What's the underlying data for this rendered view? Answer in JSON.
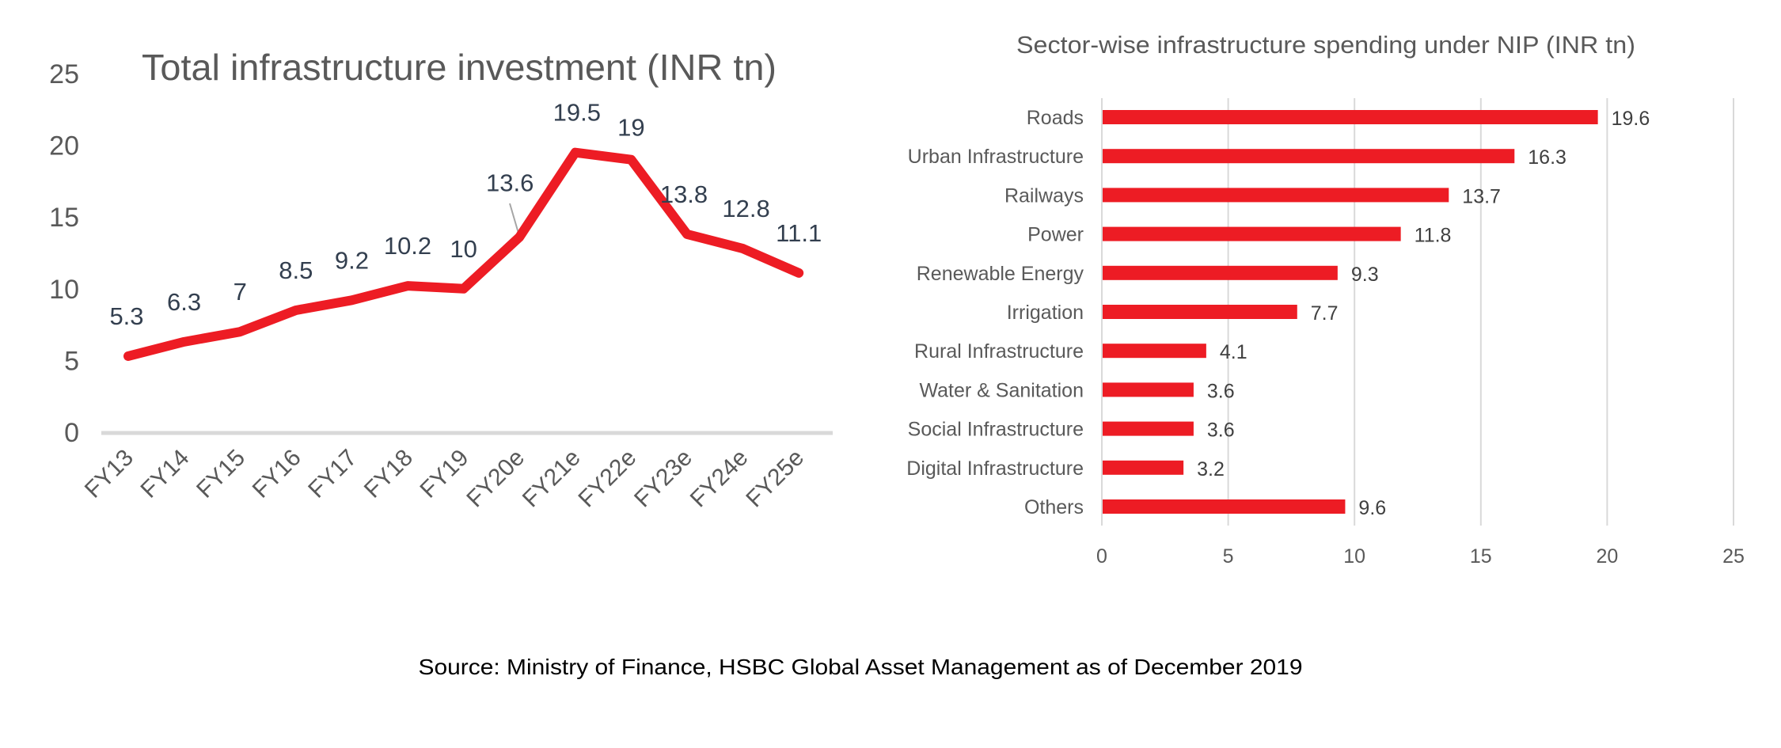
{
  "chart_data": [
    {
      "type": "line",
      "title": "Total infrastructure investment (INR tn)",
      "xlabel": "",
      "ylabel": "",
      "categories": [
        "FY13",
        "FY14",
        "FY15",
        "FY16",
        "FY17",
        "FY18",
        "FY19",
        "FY20e",
        "FY21e",
        "FY22e",
        "FY23e",
        "FY24e",
        "FY25e"
      ],
      "series": [
        {
          "name": "Total infrastructure investment",
          "values": [
            5.3,
            6.3,
            7,
            8.5,
            9.2,
            10.2,
            10,
            13.6,
            19.5,
            19,
            13.8,
            12.8,
            11.1
          ],
          "labels": [
            "5.3",
            "6.3",
            "7",
            "8.5",
            "9.2",
            "10.2",
            "10",
            "13.6",
            "19.5",
            "19",
            "13.8",
            "12.8",
            "11.1"
          ],
          "color": "#ed1c24"
        }
      ],
      "ylim": [
        0,
        25
      ],
      "yticks": [
        "0",
        "5",
        "10",
        "15",
        "20",
        "25"
      ],
      "ytick_values": [
        0,
        5,
        10,
        15,
        20,
        25
      ],
      "grid": false,
      "legend": "none"
    },
    {
      "type": "bar",
      "orientation": "horizontal",
      "title": "Sector-wise infrastructure spending under NIP (INR tn)",
      "xlabel": "",
      "ylabel": "",
      "categories": [
        "Roads",
        "Urban Infrastructure",
        "Railways",
        "Power",
        "Renewable Energy",
        "Irrigation",
        "Rural Infrastructure",
        "Water & Sanitation",
        "Social Infrastructure",
        "Digital Infrastructure",
        "Others"
      ],
      "values": [
        19.6,
        16.3,
        13.7,
        11.8,
        9.3,
        7.7,
        4.1,
        3.6,
        3.6,
        3.2,
        9.6
      ],
      "labels": [
        "19.6",
        "16.3",
        "13.7",
        "11.8",
        "9.3",
        "7.7",
        "4.1",
        "3.6",
        "3.6",
        "3.2",
        "9.6"
      ],
      "color": "#ed1c24",
      "xlim": [
        0,
        25
      ],
      "xticks": [
        "0",
        "5",
        "10",
        "15",
        "20",
        "25"
      ],
      "xtick_values": [
        0,
        5,
        10,
        15,
        20,
        25
      ],
      "grid": true,
      "legend": "none"
    }
  ],
  "footer": {
    "source": "Source: Ministry of Finance, HSBC Global Asset Management as of December 2019"
  },
  "colors": {
    "accent": "#ed1c24",
    "text": "#595959",
    "label": "#333f4f",
    "grid": "#d9d9d9"
  }
}
